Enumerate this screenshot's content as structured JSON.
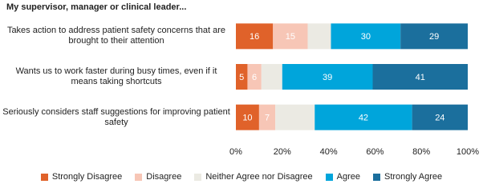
{
  "chart_data": {
    "type": "stacked-bar-horizontal",
    "title": "My supervisor, manager or clinical leader...",
    "categories": [
      "Takes action to address patient safety concerns that are brought to their attention",
      "Wants us to work faster during busy times, even if it means taking shortcuts",
      "Seriously considers staff suggestions for improving patient safety"
    ],
    "series": [
      {
        "name": "Strongly Disagree",
        "color": "#e0622a",
        "values": [
          16,
          5,
          10
        ]
      },
      {
        "name": "Disagree",
        "color": "#f7c6b6",
        "values": [
          15,
          6,
          7
        ]
      },
      {
        "name": "Neither Agree nor Disagree",
        "color": "#ebeae3",
        "values": [
          10,
          9,
          17
        ],
        "data_labels": false
      },
      {
        "name": "Agree",
        "color": "#00a5db",
        "values": [
          30,
          39,
          42
        ]
      },
      {
        "name": "Strongly Agree",
        "color": "#1b6f9d",
        "values": [
          29,
          41,
          24
        ]
      }
    ],
    "xlim": [
      0,
      100
    ],
    "xticks": [
      {
        "value": 0,
        "label": "0%"
      },
      {
        "value": 20,
        "label": "20%"
      },
      {
        "value": 40,
        "label": "40%"
      },
      {
        "value": 60,
        "label": "60%"
      },
      {
        "value": 80,
        "label": "80%"
      },
      {
        "value": 100,
        "label": "100%"
      }
    ],
    "legend": "bottom"
  }
}
